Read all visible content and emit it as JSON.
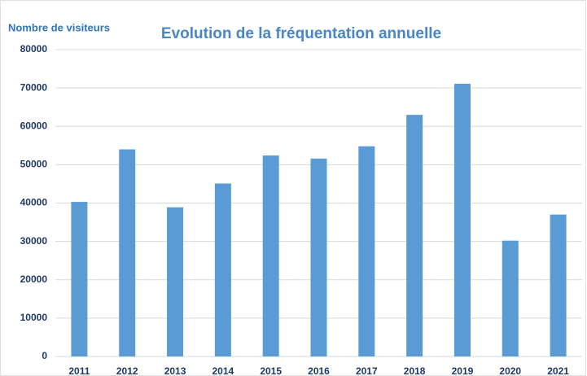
{
  "chart_data": {
    "type": "bar",
    "title": "Evolution de la fréquentation annuelle",
    "y_label": "Nombre de visiteurs",
    "categories": [
      "2011",
      "2012",
      "2013",
      "2014",
      "2015",
      "2016",
      "2017",
      "2018",
      "2019",
      "2020",
      "2021"
    ],
    "values": [
      40300,
      54000,
      38900,
      45100,
      52400,
      51600,
      54800,
      63000,
      71100,
      30200,
      37000
    ],
    "color": "#5b9bd5",
    "ylim": [
      0,
      80000
    ],
    "yticks": [
      0,
      10000,
      20000,
      30000,
      40000,
      50000,
      60000,
      70000,
      80000
    ],
    "grid": true
  }
}
